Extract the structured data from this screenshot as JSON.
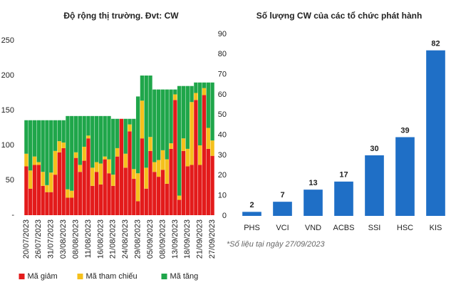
{
  "chart_data": [
    {
      "type": "bar",
      "stacked": true,
      "title": "Độ rộng thị trường. Đvt: CW",
      "categories": [
        "20/07/2023",
        null,
        null,
        "26/07/2023",
        null,
        null,
        "31/07/2023",
        null,
        null,
        "03/08/2023",
        null,
        null,
        "08/08/2023",
        null,
        null,
        "11/08/2023",
        null,
        null,
        "16/08/2023",
        null,
        null,
        "21/08/2023",
        null,
        null,
        "24/08/2023",
        null,
        null,
        "29/08/2023",
        null,
        null,
        "05/09/2023",
        null,
        null,
        "08/09/2023",
        null,
        null,
        "13/09/2023",
        null,
        null,
        "18/09/2023",
        null,
        null,
        "21/09/2023",
        null,
        null,
        "27/09/2023"
      ],
      "series": [
        {
          "name": "Mã giảm",
          "color": "#e31b1b",
          "values": [
            70,
            38,
            72,
            72,
            42,
            33,
            33,
            58,
            90,
            96,
            25,
            25,
            82,
            62,
            78,
            110,
            42,
            62,
            44,
            80,
            60,
            42,
            84,
            138,
            68,
            120,
            52,
            20,
            110,
            38,
            92,
            62,
            55,
            65,
            45,
            95,
            165,
            22,
            92,
            70,
            72,
            165,
            72,
            172,
            95,
            85
          ]
        },
        {
          "name": "Mã tham chiếu",
          "color": "#f5c01c",
          "values": [
            18,
            26,
            12,
            4,
            20,
            10,
            28,
            34,
            16,
            8,
            12,
            10,
            8,
            10,
            20,
            4,
            26,
            14,
            30,
            4,
            20,
            16,
            12,
            0,
            20,
            10,
            14,
            40,
            54,
            30,
            20,
            14,
            24,
            28,
            35,
            8,
            8,
            6,
            18,
            25,
            90,
            10,
            28,
            10,
            30,
            22
          ]
        },
        {
          "name": "Mã tăng",
          "color": "#1fa64a",
          "values": [
            48,
            72,
            52,
            60,
            74,
            93,
            75,
            44,
            30,
            32,
            105,
            107,
            52,
            70,
            44,
            28,
            74,
            66,
            68,
            58,
            62,
            80,
            42,
            0,
            50,
            8,
            72,
            110,
            36,
            132,
            88,
            104,
            101,
            87,
            100,
            77,
            7,
            157,
            75,
            90,
            23,
            15,
            90,
            8,
            65,
            83
          ]
        }
      ],
      "ylim": [
        0,
        250
      ],
      "yticks": [
        {
          "value": 0,
          "label": "-"
        },
        50,
        100,
        150,
        200,
        250
      ]
    },
    {
      "type": "bar",
      "title": "Số lượng CW của các tổ chức phát hành",
      "categories": [
        "PHS",
        "VCI",
        "VND",
        "ACBS",
        "SSI",
        "HSC",
        "KIS"
      ],
      "values": [
        2,
        7,
        13,
        17,
        30,
        39,
        82
      ],
      "color": "#1f6fc6",
      "ylim": [
        0,
        90
      ],
      "yticks": [
        0,
        10,
        20,
        30,
        40,
        50,
        60,
        70,
        80,
        90
      ],
      "annotation": "*Số liệu tại ngày 27/09/2023"
    }
  ]
}
